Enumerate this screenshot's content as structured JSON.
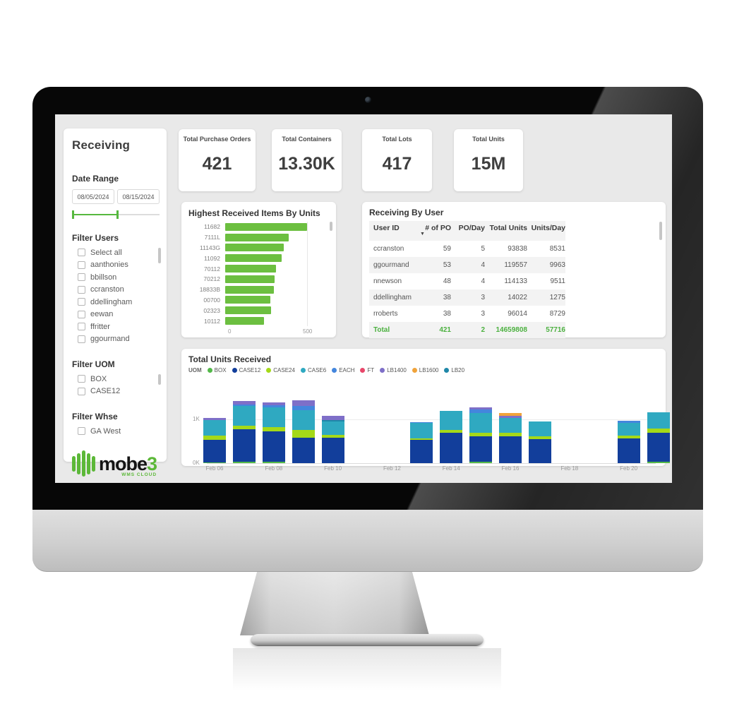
{
  "sidebar": {
    "title": "Receiving",
    "date_range": {
      "label": "Date Range",
      "start": "08/05/2024",
      "end": "08/15/2024"
    },
    "filter_groups": [
      {
        "label": "Filter Users",
        "scrollbar": true,
        "scroll_h": 22,
        "options": [
          "Select all",
          "aanthonies",
          "bbillson",
          "ccranston",
          "ddellingham",
          "eewan",
          "ffritter",
          "ggourmand"
        ]
      },
      {
        "label": "Filter UOM",
        "scrollbar": true,
        "scroll_h": 15,
        "options": [
          "BOX",
          "CASE12"
        ]
      },
      {
        "label": "Filter Whse",
        "scrollbar": false,
        "scroll_h": 0,
        "options": [
          "GA West"
        ]
      }
    ],
    "logo": {
      "text": "mobe",
      "suffix": "3",
      "subtext": "WMS CLOUD"
    }
  },
  "kpis": [
    {
      "label": "Total Purchase Orders",
      "value": "421"
    },
    {
      "label": "Total Containers",
      "value": "13.30K"
    },
    {
      "label": "Total Lots",
      "value": "417"
    },
    {
      "label": "Total Units",
      "value": "15M"
    }
  ],
  "chart_data": [
    {
      "type": "bar",
      "orientation": "horizontal",
      "title": "Highest Received Items By Units",
      "categories": [
        "11682",
        "7111L",
        "11143G",
        "11092",
        "70112",
        "70212",
        "18833B",
        "00700",
        "02323",
        "10112"
      ],
      "values": [
        529,
        407,
        379,
        365,
        329,
        320,
        313,
        291,
        293,
        250
      ],
      "xlim": [
        0,
        600
      ],
      "xticks": [
        "0",
        "500"
      ],
      "bar_color": "#6cbf40",
      "grid": true
    },
    {
      "type": "table",
      "title": "Receiving By User",
      "columns": [
        "User ID",
        "# of PO",
        "PO/Day",
        "Total Units",
        "Units/Day"
      ],
      "sort_column": "# of PO",
      "sort_icon": "▼",
      "rows": [
        [
          "ccranston",
          "59",
          "5",
          "93838",
          "8531"
        ],
        [
          "ggourmand",
          "53",
          "4",
          "119557",
          "9963"
        ],
        [
          "nnewson",
          "48",
          "4",
          "114133",
          "9511"
        ],
        [
          "ddellingham",
          "38",
          "3",
          "14022",
          "1275"
        ],
        [
          "rroberts",
          "38",
          "3",
          "96014",
          "8729"
        ]
      ],
      "total_row": [
        "Total",
        "421",
        "2",
        "14659808",
        "57716"
      ],
      "total_color": "#4cb140"
    },
    {
      "type": "bar",
      "stacked": true,
      "title": "Total Units Received",
      "legend_title": "UOM",
      "legend_position": "top",
      "ylim": [
        0,
        1600
      ],
      "yticks": [
        "0K",
        "1K"
      ],
      "xticks": [
        "Feb 06",
        "Feb 08",
        "Feb 10",
        "Feb 12",
        "Feb 14",
        "Feb 16",
        "Feb 18",
        "Feb 20"
      ],
      "series_colors": {
        "BOX": "#53b849",
        "CASE12": "#123e9b",
        "CASE24": "#a5d918",
        "CASE6": "#2fa9c1",
        "EACH": "#4486dd",
        "FT": "#e8476a",
        "LB1400": "#7e6fc8",
        "LB1600": "#f0a33a",
        "LB20": "#1f87a8"
      },
      "legend_order": [
        "BOX",
        "CASE12",
        "CASE24",
        "CASE6",
        "EACH",
        "FT",
        "LB1400",
        "LB1600",
        "LB20"
      ],
      "bars": [
        {
          "day": 0,
          "label": "Feb 06",
          "stack": [
            [
              "BOX",
              20
            ],
            [
              "CASE12",
              500
            ],
            [
              "CASE24",
              95
            ],
            [
              "CASE6",
              360
            ],
            [
              "LB1400",
              45
            ]
          ]
        },
        {
          "day": 1,
          "label": "Feb 07",
          "stack": [
            [
              "BOX",
              40
            ],
            [
              "CASE12",
              720
            ],
            [
              "CASE24",
              75
            ],
            [
              "CASE6",
              450
            ],
            [
              "EACH",
              40
            ],
            [
              "LB1400",
              70
            ]
          ]
        },
        {
          "day": 2,
          "label": "Feb 08",
          "stack": [
            [
              "BOX",
              35
            ],
            [
              "CASE12",
              680
            ],
            [
              "CASE24",
              100
            ],
            [
              "CASE6",
              440
            ],
            [
              "EACH",
              50
            ],
            [
              "LB1400",
              60
            ]
          ]
        },
        {
          "day": 3,
          "label": "Feb 09",
          "stack": [
            [
              "CASE12",
              580
            ],
            [
              "CASE24",
              175
            ],
            [
              "CASE6",
              430
            ],
            [
              "EACH",
              95
            ],
            [
              "LB1400",
              140
            ]
          ]
        },
        {
          "day": 4,
          "label": "Feb 10",
          "stack": [
            [
              "CASE12",
              580
            ],
            [
              "CASE24",
              60
            ],
            [
              "CASE6",
              300
            ],
            [
              "LB20",
              25
            ],
            [
              "LB1400",
              105
            ]
          ]
        },
        {
          "day": 7,
          "label": "Feb 13",
          "stack": [
            [
              "CASE12",
              520
            ],
            [
              "CASE24",
              40
            ],
            [
              "CASE6",
              340
            ],
            [
              "EACH",
              25
            ]
          ]
        },
        {
          "day": 8,
          "label": "Feb 14",
          "stack": [
            [
              "CASE12",
              680
            ],
            [
              "CASE24",
              70
            ],
            [
              "CASE6",
              420
            ]
          ]
        },
        {
          "day": 9,
          "label": "Feb 15",
          "stack": [
            [
              "BOX",
              30
            ],
            [
              "CASE12",
              570
            ],
            [
              "CASE24",
              80
            ],
            [
              "CASE6",
              450
            ],
            [
              "EACH",
              70
            ],
            [
              "LB1400",
              50
            ]
          ]
        },
        {
          "day": 10,
          "label": "Feb 16",
          "stack": [
            [
              "CASE12",
              600
            ],
            [
              "CASE24",
              80
            ],
            [
              "CASE6",
              340
            ],
            [
              "LB1400",
              40
            ],
            [
              "LB1600",
              65
            ]
          ]
        },
        {
          "day": 11,
          "label": "Feb 17",
          "stack": [
            [
              "CASE12",
              540
            ],
            [
              "CASE24",
              70
            ],
            [
              "CASE6",
              330
            ]
          ]
        },
        {
          "day": 14,
          "label": "Feb 20",
          "stack": [
            [
              "CASE12",
              550
            ],
            [
              "CASE24",
              75
            ],
            [
              "CASE6",
              280
            ],
            [
              "EACH",
              55
            ]
          ]
        },
        {
          "day": 15,
          "label": "Feb 21",
          "stack": [
            [
              "BOX",
              25
            ],
            [
              "CASE12",
              660
            ],
            [
              "CASE24",
              85
            ],
            [
              "CASE6",
              380
            ]
          ]
        }
      ]
    }
  ],
  "colors": {
    "accent_green": "#56b83e",
    "hbar_green": "#6cbf40",
    "content_bg": "#e9e9e9",
    "logo_green": "#5cb838"
  }
}
